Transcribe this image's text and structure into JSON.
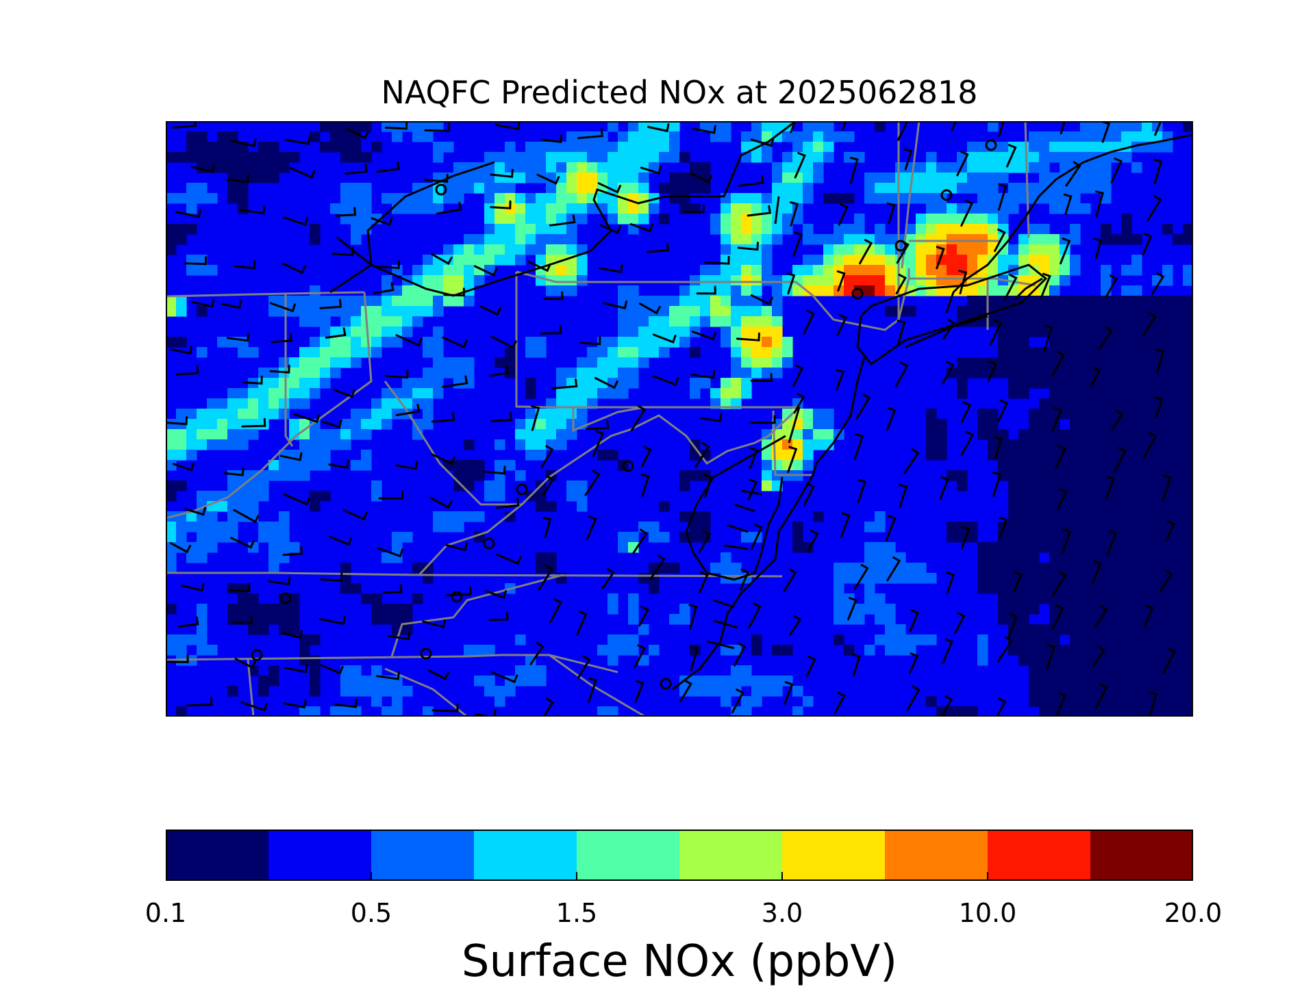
{
  "title": "NAQFC Predicted NOx at 2025062818",
  "colorbar": {
    "label": "Surface NOx (ppbV)",
    "colors": [
      "#00006b",
      "#0000f5",
      "#0064ff",
      "#00d8ff",
      "#50ffa8",
      "#a8ff48",
      "#ffe400",
      "#ff7d00",
      "#ff1800",
      "#7d0000"
    ],
    "tick_labels": [
      "0.1",
      "0.5",
      "1.5",
      "3.0",
      "10.0",
      "20.0"
    ]
  },
  "map": {
    "colors": {
      "state_borders": "#808080",
      "coastline": "#000000",
      "wind_barbs": "#000000"
    }
  }
}
